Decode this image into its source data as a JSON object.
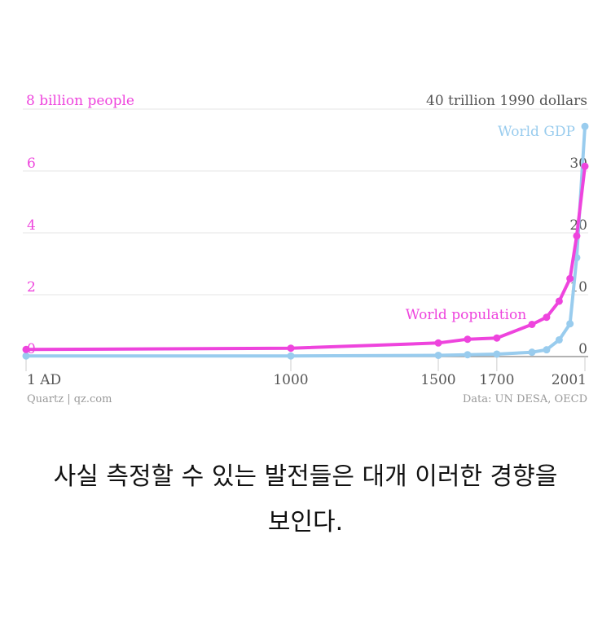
{
  "colors": {
    "population": "#ee44dd",
    "gdp": "#99ccee",
    "axis_text": "#555555",
    "grid": "#e6e6e6",
    "baseline": "#999999",
    "footer": "#999999"
  },
  "chart_data": {
    "type": "line",
    "left_axis": {
      "label": "8 billion people",
      "ticks": [
        0,
        2,
        4,
        6
      ],
      "ylim": [
        0,
        8
      ]
    },
    "right_axis": {
      "label": "40 trillion 1990 dollars",
      "ticks": [
        0,
        10,
        20,
        30
      ],
      "ylim": [
        0,
        40
      ]
    },
    "x_ticks": [
      {
        "value": 1,
        "label": "1 AD"
      },
      {
        "value": 1000,
        "label": "1000"
      },
      {
        "value": 1500,
        "label": "1500"
      },
      {
        "value": 1700,
        "label": "1700"
      },
      {
        "value": 2001,
        "label": "2001"
      }
    ],
    "xlim": [
      1,
      2001
    ],
    "x_scale_note": "axis stretched after 1500",
    "grid": true,
    "series": [
      {
        "name": "World population",
        "axis": "left",
        "points": [
          [
            1,
            0.23
          ],
          [
            1000,
            0.27
          ],
          [
            1500,
            0.44
          ],
          [
            1600,
            0.56
          ],
          [
            1700,
            0.6
          ],
          [
            1820,
            1.04
          ],
          [
            1870,
            1.27
          ],
          [
            1913,
            1.79
          ],
          [
            1950,
            2.52
          ],
          [
            1973,
            3.9
          ],
          [
            2001,
            6.15
          ]
        ]
      },
      {
        "name": "World GDP",
        "axis": "right",
        "points": [
          [
            1,
            0.1
          ],
          [
            1000,
            0.1
          ],
          [
            1500,
            0.2
          ],
          [
            1600,
            0.3
          ],
          [
            1700,
            0.4
          ],
          [
            1820,
            0.7
          ],
          [
            1870,
            1.1
          ],
          [
            1913,
            2.7
          ],
          [
            1950,
            5.3
          ],
          [
            1973,
            16.0
          ],
          [
            2001,
            37.2
          ]
        ]
      }
    ]
  },
  "footer": {
    "source_left": "Quartz | qz.com",
    "source_right": "Data: UN DESA, OECD"
  },
  "caption": {
    "line1": "사실 측정할 수 있는 발전들은 대개 이러한 경향을",
    "line2": "보인다."
  }
}
